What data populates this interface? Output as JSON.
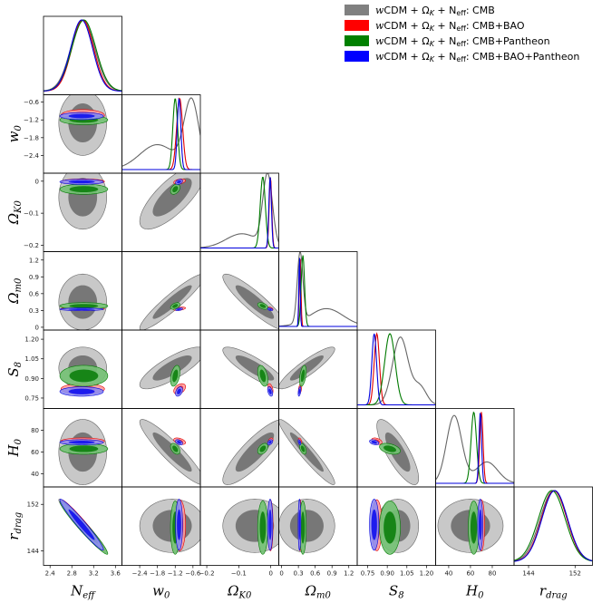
{
  "chart_data": {
    "type": "scatter",
    "subtype": "triangle corner plot",
    "parameters": [
      {
        "key": "Neff",
        "label": "N",
        "sub": "eff",
        "ticks": [
          2.4,
          2.8,
          3.2,
          3.6
        ],
        "tick_labels": [
          "2.4",
          "2.8",
          "3.2",
          "3.6"
        ],
        "range": [
          2.28,
          3.72
        ]
      },
      {
        "key": "w0",
        "label": "w",
        "sub": "0",
        "ticks": [
          -2.4,
          -1.8,
          -1.2,
          -0.6
        ],
        "tick_labels": [
          "−2.4",
          "−1.8",
          "−1.2",
          "−0.6"
        ],
        "range": [
          -3.0,
          -0.35
        ]
      },
      {
        "key": "OmegaK0",
        "label": "Ω",
        "sub": "K0",
        "ticks": [
          -0.2,
          -0.1,
          0
        ],
        "tick_labels": [
          "−0.2",
          "−0.1",
          "0"
        ],
        "range": [
          -0.22,
          0.025
        ]
      },
      {
        "key": "Omegam0",
        "label": "Ω",
        "sub": "m0",
        "ticks": [
          0,
          0.3,
          0.6,
          0.9,
          1.2
        ],
        "tick_labels": [
          "0",
          "0.3",
          "0.6",
          "0.9",
          "1.2"
        ],
        "range": [
          -0.05,
          1.35
        ]
      },
      {
        "key": "S8",
        "label": "S",
        "sub": "8",
        "ticks": [
          0.75,
          0.9,
          1.05,
          1.2
        ],
        "tick_labels": [
          "0.75",
          "0.90",
          "1.05",
          "1.20"
        ],
        "range": [
          0.67,
          1.27
        ]
      },
      {
        "key": "H0",
        "label": "H",
        "sub": "0",
        "ticks": [
          40,
          60,
          80
        ],
        "tick_labels": [
          "40",
          "60",
          "80"
        ],
        "range": [
          28,
          100
        ]
      },
      {
        "key": "rdrag",
        "label": "r",
        "sub": "drag",
        "ticks": [
          144,
          152
        ],
        "tick_labels": [
          "144",
          "152"
        ],
        "range": [
          141.5,
          155
        ]
      }
    ],
    "series": [
      {
        "name": "wCDM + Ω_K + N_eff: CMB",
        "color": "#808080",
        "inner_color": "#6e6e6e",
        "outer_color": "#c2c2c2",
        "line_color": "#666666",
        "mean": [
          3.0,
          -1.3,
          -0.05,
          0.45,
          0.98,
          60,
          148.3
        ],
        "sigma": [
          0.22,
          0.55,
          0.05,
          0.25,
          0.08,
          15,
          2.3
        ]
      },
      {
        "name": "wCDM + Ω_K + N_eff: CMB+BAO",
        "color": "#ff0000",
        "inner_color": "#ff3030",
        "outer_color": "#ff9b9b",
        "line_color": "#e00000",
        "mean": [
          3.0,
          -1.05,
          -0.001,
          0.33,
          0.82,
          70,
          148.4
        ],
        "sigma": [
          0.2,
          0.1,
          0.004,
          0.015,
          0.02,
          1.5,
          2.2
        ]
      },
      {
        "name": "wCDM + Ω_K + N_eff: CMB+Pantheon",
        "color": "#008000",
        "inner_color": "#0d800d",
        "outer_color": "#73c173",
        "line_color": "#007a00",
        "mean": [
          3.02,
          -1.2,
          -0.025,
          0.38,
          0.92,
          63,
          148.0
        ],
        "sigma": [
          0.22,
          0.08,
          0.008,
          0.03,
          0.04,
          2.5,
          2.3
        ]
      },
      {
        "name": "wCDM + Ω_K + N_eff: CMB+BAO+Pantheon",
        "color": "#0000ff",
        "inner_color": "#1010ee",
        "outer_color": "#8d8df2",
        "line_color": "#0000dd",
        "mean": [
          2.98,
          -1.07,
          -0.002,
          0.32,
          0.8,
          69,
          148.5
        ],
        "sigma": [
          0.2,
          0.06,
          0.004,
          0.012,
          0.018,
          1.2,
          2.2
        ]
      }
    ],
    "legend_position": "top-right",
    "grid": false
  },
  "legend": {
    "items": [
      {
        "model": "wCDM + Ω",
        "model_sub": "K",
        "plus": " + N",
        "plus_sub": "eff",
        "data": ": CMB"
      },
      {
        "model": "wCDM + Ω",
        "model_sub": "K",
        "plus": " + N",
        "plus_sub": "eff",
        "data": ": CMB+BAO"
      },
      {
        "model": "wCDM + Ω",
        "model_sub": "K",
        "plus": " + N",
        "plus_sub": "eff",
        "data": ": CMB+Pantheon"
      },
      {
        "model": "wCDM + Ω",
        "model_sub": "K",
        "plus": " + N",
        "plus_sub": "eff",
        "data": ": CMB+BAO+Pantheon"
      }
    ]
  }
}
